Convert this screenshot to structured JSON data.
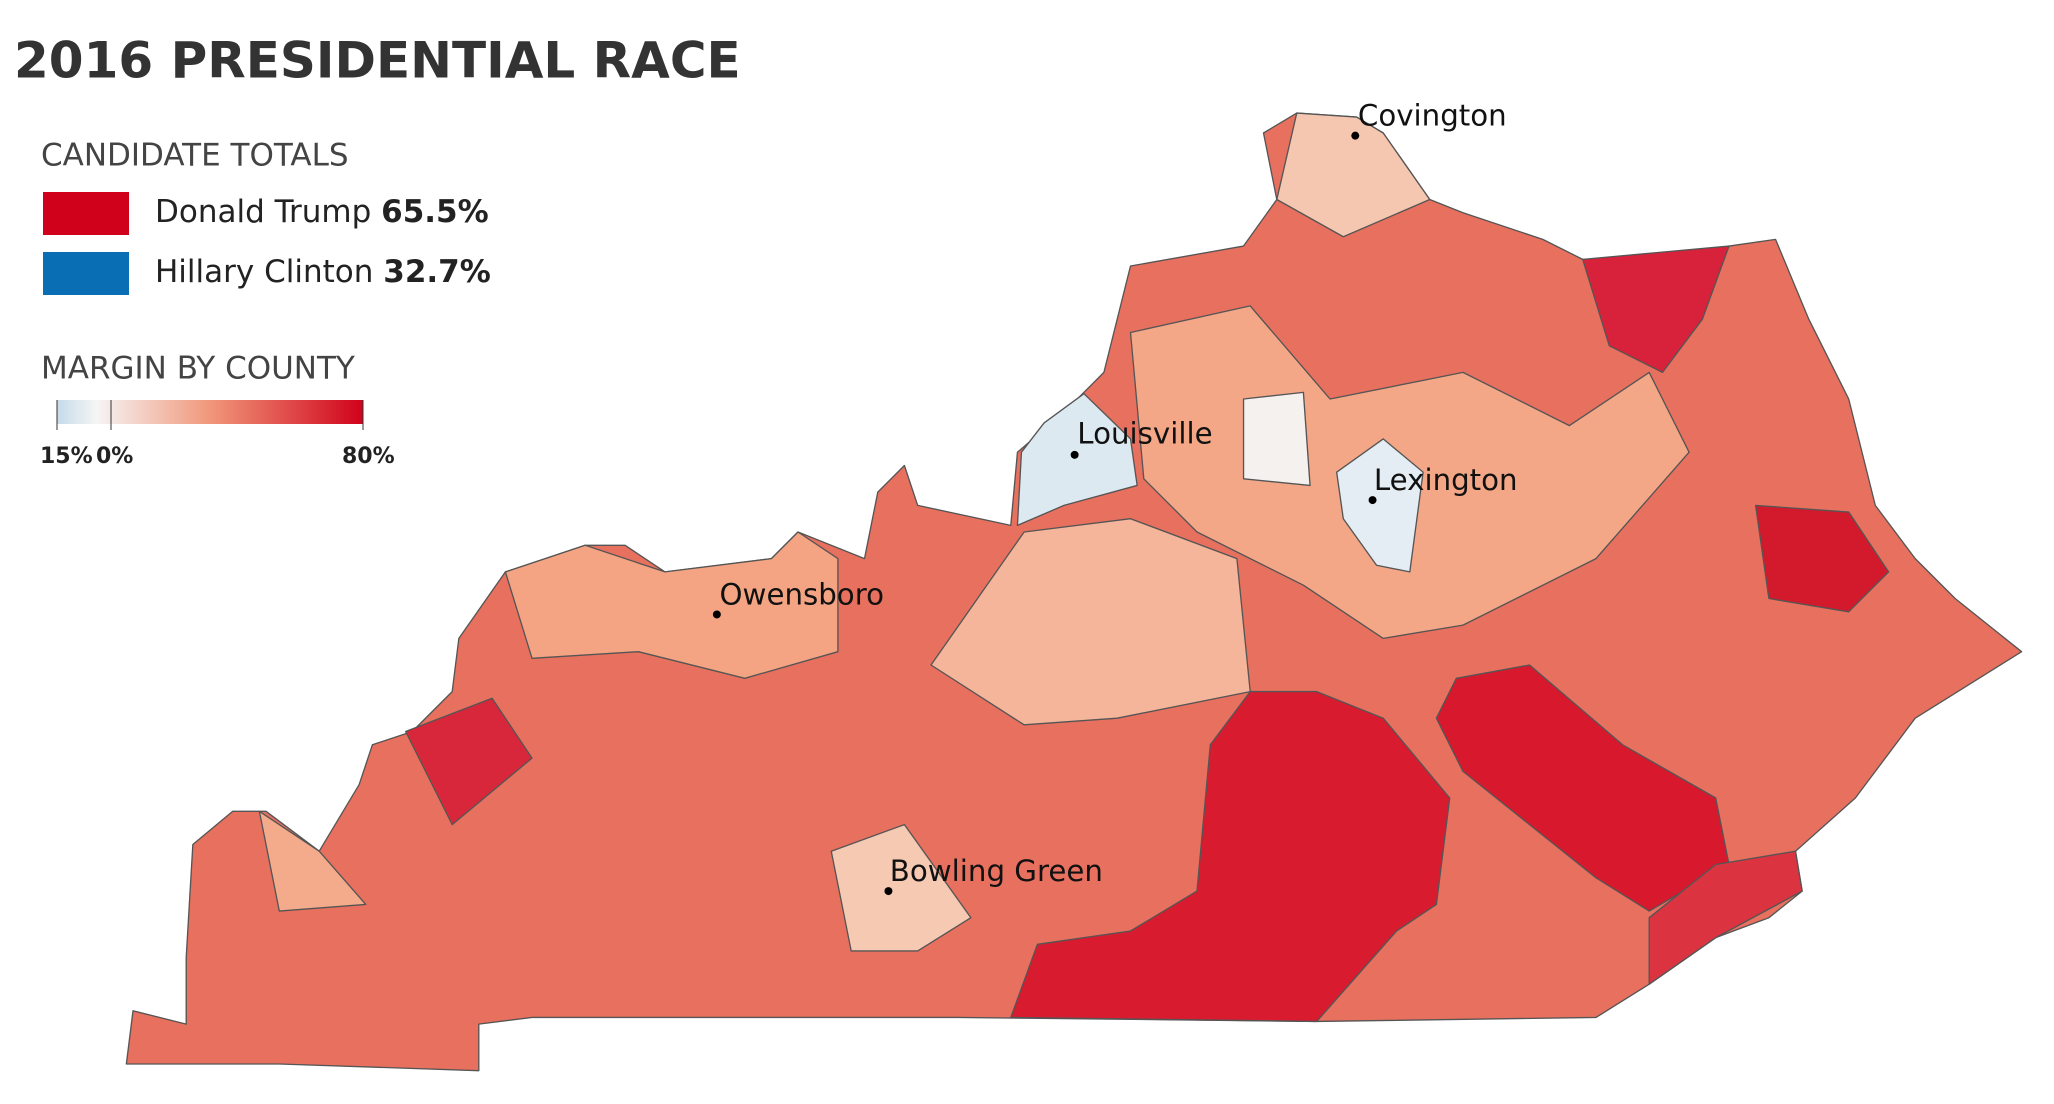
{
  "header": {
    "title": "2016 PRESIDENTIAL RACE"
  },
  "legend": {
    "heading": "CANDIDATE TOTALS",
    "candidates": [
      {
        "name": "Donald Trump",
        "share": "65.5%",
        "color": "#d0021b"
      },
      {
        "name": "Hillary Clinton",
        "share": "32.7%",
        "color": "#0a6eb4"
      }
    ]
  },
  "scale": {
    "heading": "MARGIN BY COUNTY",
    "labels": [
      "15%",
      "0%",
      "80%"
    ]
  },
  "cities": [
    {
      "name": "Covington"
    },
    {
      "name": "Louisville"
    },
    {
      "name": "Lexington"
    },
    {
      "name": "Owensboro"
    },
    {
      "name": "Bowling Green"
    }
  ]
}
